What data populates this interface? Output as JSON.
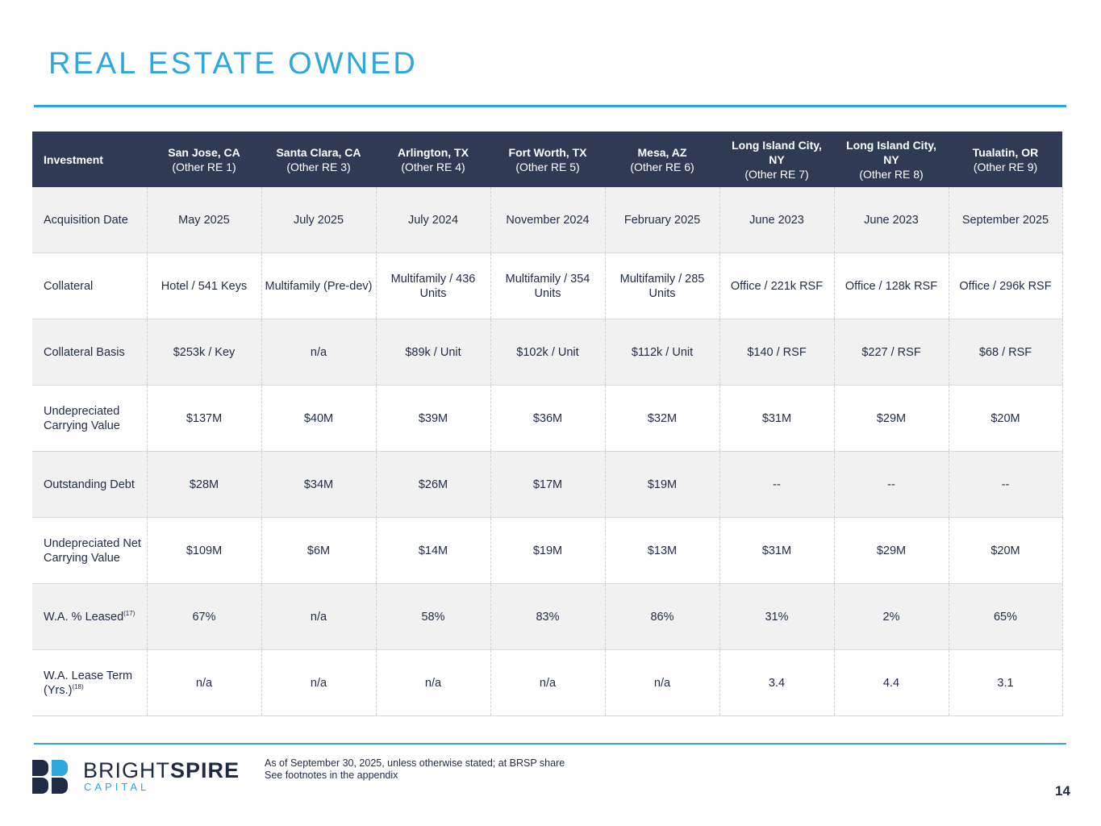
{
  "title": "REAL ESTATE OWNED",
  "table": {
    "header_label": "Investment",
    "columns": [
      {
        "city": "San Jose, CA",
        "ref": "(Other RE 1)"
      },
      {
        "city": "Santa Clara, CA",
        "ref": "(Other RE 3)"
      },
      {
        "city": "Arlington, TX",
        "ref": "(Other RE 4)"
      },
      {
        "city": "Fort Worth, TX",
        "ref": "(Other RE 5)"
      },
      {
        "city": "Mesa, AZ",
        "ref": "(Other RE 6)"
      },
      {
        "city": "Long Island City, NY",
        "ref": "(Other RE 7)"
      },
      {
        "city": "Long Island City, NY",
        "ref": "(Other RE 8)"
      },
      {
        "city": "Tualatin, OR",
        "ref": "(Other RE 9)"
      }
    ],
    "rows": [
      {
        "label": "Acquisition Date",
        "sup": "",
        "values": [
          "May 2025",
          "July 2025",
          "July 2024",
          "November 2024",
          "February 2025",
          "June 2023",
          "June 2023",
          "September 2025"
        ]
      },
      {
        "label": "Collateral",
        "sup": "",
        "values": [
          "Hotel / 541 Keys",
          "Multifamily (Pre-dev)",
          "Multifamily / 436 Units",
          "Multifamily / 354 Units",
          "Multifamily / 285 Units",
          "Office / 221k RSF",
          "Office / 128k RSF",
          "Office / 296k RSF"
        ]
      },
      {
        "label": "Collateral Basis",
        "sup": "",
        "values": [
          "$253k / Key",
          "n/a",
          "$89k / Unit",
          "$102k / Unit",
          "$112k / Unit",
          "$140 / RSF",
          "$227 / RSF",
          "$68 / RSF"
        ]
      },
      {
        "label": "Undepreciated Carrying Value",
        "sup": "",
        "values": [
          "$137M",
          "$40M",
          "$39M",
          "$36M",
          "$32M",
          "$31M",
          "$29M",
          "$20M"
        ]
      },
      {
        "label": "Outstanding Debt",
        "sup": "",
        "values": [
          "$28M",
          "$34M",
          "$26M",
          "$17M",
          "$19M",
          "--",
          "--",
          "--"
        ]
      },
      {
        "label": "Undepreciated Net Carrying Value",
        "sup": "",
        "values": [
          "$109M",
          "$6M",
          "$14M",
          "$19M",
          "$13M",
          "$31M",
          "$29M",
          "$20M"
        ]
      },
      {
        "label": "W.A. % Leased",
        "sup": "(17)",
        "values": [
          "67%",
          "n/a",
          "58%",
          "83%",
          "86%",
          "31%",
          "2%",
          "65%"
        ]
      },
      {
        "label": "W.A. Lease Term (Yrs.)",
        "sup": "(18)",
        "values": [
          "n/a",
          "n/a",
          "n/a",
          "n/a",
          "n/a",
          "3.4",
          "4.4",
          "3.1"
        ]
      }
    ]
  },
  "logo": {
    "brand_light": "BRIGHT",
    "brand_bold": "SPIRE",
    "sub": "CAPITAL"
  },
  "footnotes": [
    "As of September 30, 2025, unless otherwise stated; at BRSP share",
    "See footnotes in the appendix"
  ],
  "page_number": "14",
  "colors": {
    "accent": "#2ea7dc",
    "header_bg": "#2f3b55",
    "text": "#1f2a44",
    "row_shade": "#f1f1f1"
  }
}
